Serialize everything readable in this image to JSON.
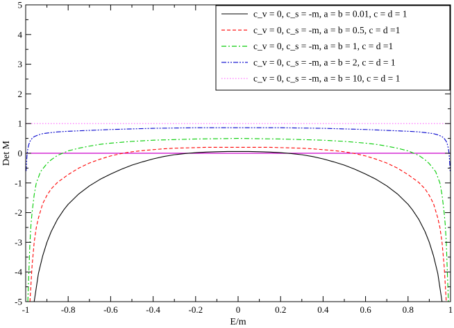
{
  "chart_data": {
    "type": "line",
    "title": "",
    "xlabel": "E/m",
    "ylabel": "Det M",
    "xlim": [
      -1,
      1
    ],
    "ylim": [
      -5,
      5
    ],
    "x_ticks": [
      -1,
      -0.8,
      -0.6,
      -0.4,
      -0.2,
      0,
      0.2,
      0.4,
      0.6,
      0.8,
      1
    ],
    "x_tick_labels": [
      "-1",
      "-0.8",
      "-0.6",
      "-0.4",
      "-0.2",
      "0",
      "0.2",
      "0.4",
      "0.6",
      "0.8",
      "1"
    ],
    "y_ticks": [
      -5,
      -4,
      -3,
      -2,
      -1,
      0,
      1,
      2,
      3,
      4,
      5
    ],
    "y_tick_labels": [
      "-5",
      "-4",
      "-3",
      "-2",
      "-1",
      "0",
      "1",
      "2",
      "3",
      "4",
      "5"
    ],
    "grid": false,
    "legend_position": "top-right",
    "zero_line": {
      "y": 0,
      "color": "#cc00cc"
    },
    "series": [
      {
        "name": "c_v = 0, c_s = -m, a = b = 0.01, c = d = 1",
        "color": "#000000",
        "dash": "solid",
        "x": [
          -0.96,
          -0.94,
          -0.92,
          -0.9,
          -0.88,
          -0.85,
          -0.82,
          -0.8,
          -0.75,
          -0.7,
          -0.65,
          -0.6,
          -0.55,
          -0.5,
          -0.45,
          -0.4,
          -0.35,
          -0.3,
          -0.25,
          -0.2,
          -0.15,
          -0.1,
          -0.05,
          0,
          0.05,
          0.1,
          0.15,
          0.2,
          0.25,
          0.3,
          0.35,
          0.4,
          0.45,
          0.5,
          0.55,
          0.6,
          0.65,
          0.7,
          0.75,
          0.8,
          0.82,
          0.85,
          0.88,
          0.9,
          0.92,
          0.94,
          0.96
        ],
        "y": [
          -5.0,
          -4.05,
          -3.46,
          -3.0,
          -2.64,
          -2.22,
          -1.9,
          -1.72,
          -1.37,
          -1.1,
          -0.88,
          -0.7,
          -0.54,
          -0.4,
          -0.29,
          -0.19,
          -0.11,
          -0.05,
          -0.01,
          0.02,
          0.04,
          0.05,
          0.06,
          0.06,
          0.06,
          0.05,
          0.04,
          0.02,
          -0.01,
          -0.05,
          -0.11,
          -0.19,
          -0.29,
          -0.4,
          -0.54,
          -0.7,
          -0.88,
          -1.1,
          -1.37,
          -1.72,
          -1.9,
          -2.22,
          -2.64,
          -3.0,
          -3.46,
          -4.05,
          -5.0
        ]
      },
      {
        "name": "c_v = 0, c_s = -m, a = b = 0.5, c = d =1",
        "color": "#ff0000",
        "dash": "dashed",
        "x": [
          -0.98,
          -0.97,
          -0.96,
          -0.95,
          -0.94,
          -0.92,
          -0.9,
          -0.88,
          -0.85,
          -0.8,
          -0.75,
          -0.7,
          -0.65,
          -0.6,
          -0.55,
          -0.5,
          -0.45,
          -0.4,
          -0.35,
          -0.3,
          -0.25,
          -0.2,
          -0.15,
          -0.1,
          -0.05,
          0,
          0.05,
          0.1,
          0.15,
          0.2,
          0.25,
          0.3,
          0.35,
          0.4,
          0.45,
          0.5,
          0.55,
          0.6,
          0.65,
          0.7,
          0.75,
          0.8,
          0.85,
          0.88,
          0.9,
          0.92,
          0.94,
          0.95,
          0.96,
          0.97,
          0.98
        ],
        "y": [
          -5.0,
          -3.8,
          -3.0,
          -2.5,
          -2.18,
          -1.7,
          -1.42,
          -1.2,
          -0.98,
          -0.72,
          -0.5,
          -0.33,
          -0.2,
          -0.09,
          -0.01,
          0.05,
          0.09,
          0.12,
          0.15,
          0.17,
          0.18,
          0.19,
          0.2,
          0.2,
          0.2,
          0.2,
          0.2,
          0.2,
          0.2,
          0.19,
          0.18,
          0.17,
          0.15,
          0.12,
          0.09,
          0.05,
          -0.01,
          -0.09,
          -0.2,
          -0.33,
          -0.5,
          -0.72,
          -0.98,
          -1.2,
          -1.42,
          -1.7,
          -2.18,
          -2.5,
          -3.0,
          -3.8,
          -5.0
        ]
      },
      {
        "name": "c_v = 0, c_s = -m, a = b = 1, c = d =1",
        "color": "#00cc00",
        "dash": "dashdot",
        "x": [
          -0.99,
          -0.985,
          -0.98,
          -0.975,
          -0.97,
          -0.96,
          -0.95,
          -0.93,
          -0.9,
          -0.88,
          -0.85,
          -0.8,
          -0.75,
          -0.7,
          -0.65,
          -0.6,
          -0.55,
          -0.5,
          -0.45,
          -0.4,
          -0.3,
          -0.2,
          -0.1,
          0,
          0.1,
          0.2,
          0.3,
          0.4,
          0.45,
          0.5,
          0.55,
          0.6,
          0.65,
          0.7,
          0.75,
          0.8,
          0.85,
          0.88,
          0.9,
          0.93,
          0.95,
          0.96,
          0.97,
          0.975,
          0.98,
          0.985,
          0.99
        ],
        "y": [
          -5.0,
          -4.0,
          -3.0,
          -2.4,
          -2.0,
          -1.4,
          -1.0,
          -0.62,
          -0.35,
          -0.22,
          -0.07,
          0.08,
          0.17,
          0.24,
          0.3,
          0.34,
          0.37,
          0.4,
          0.42,
          0.44,
          0.46,
          0.48,
          0.49,
          0.5,
          0.49,
          0.48,
          0.46,
          0.44,
          0.42,
          0.4,
          0.37,
          0.34,
          0.3,
          0.24,
          0.17,
          0.08,
          -0.07,
          -0.22,
          -0.35,
          -0.62,
          -1.0,
          -1.4,
          -2.0,
          -2.4,
          -3.0,
          -4.0,
          -5.0
        ]
      },
      {
        "name": "c_v = 0, c_s = -m, a = b = 2, c = d = 1",
        "color": "#0000cc",
        "dash": "dashdotdot",
        "x": [
          -0.998,
          -0.996,
          -0.993,
          -0.99,
          -0.985,
          -0.98,
          -0.97,
          -0.96,
          -0.94,
          -0.92,
          -0.9,
          -0.85,
          -0.8,
          -0.7,
          -0.6,
          -0.5,
          -0.4,
          -0.3,
          -0.2,
          -0.1,
          0,
          0.1,
          0.2,
          0.3,
          0.4,
          0.5,
          0.6,
          0.7,
          0.8,
          0.85,
          0.9,
          0.92,
          0.94,
          0.96,
          0.97,
          0.98,
          0.985,
          0.99,
          0.993,
          0.996,
          0.998
        ],
        "y": [
          -0.6,
          -0.3,
          0.0,
          0.15,
          0.3,
          0.4,
          0.5,
          0.56,
          0.62,
          0.66,
          0.68,
          0.72,
          0.74,
          0.77,
          0.8,
          0.82,
          0.84,
          0.85,
          0.86,
          0.86,
          0.86,
          0.86,
          0.86,
          0.85,
          0.84,
          0.82,
          0.8,
          0.77,
          0.74,
          0.72,
          0.68,
          0.66,
          0.62,
          0.56,
          0.5,
          0.4,
          0.3,
          0.15,
          0.0,
          -0.3,
          -0.6
        ]
      },
      {
        "name": "c_v = 0, c_s = -m, a = b = 10, c = d = 1",
        "color": "#ff66ff",
        "dash": "dotted",
        "x": [
          -1,
          -0.5,
          0,
          0.5,
          1
        ],
        "y": [
          1.0,
          1.0,
          1.0,
          1.0,
          1.0
        ]
      }
    ]
  }
}
